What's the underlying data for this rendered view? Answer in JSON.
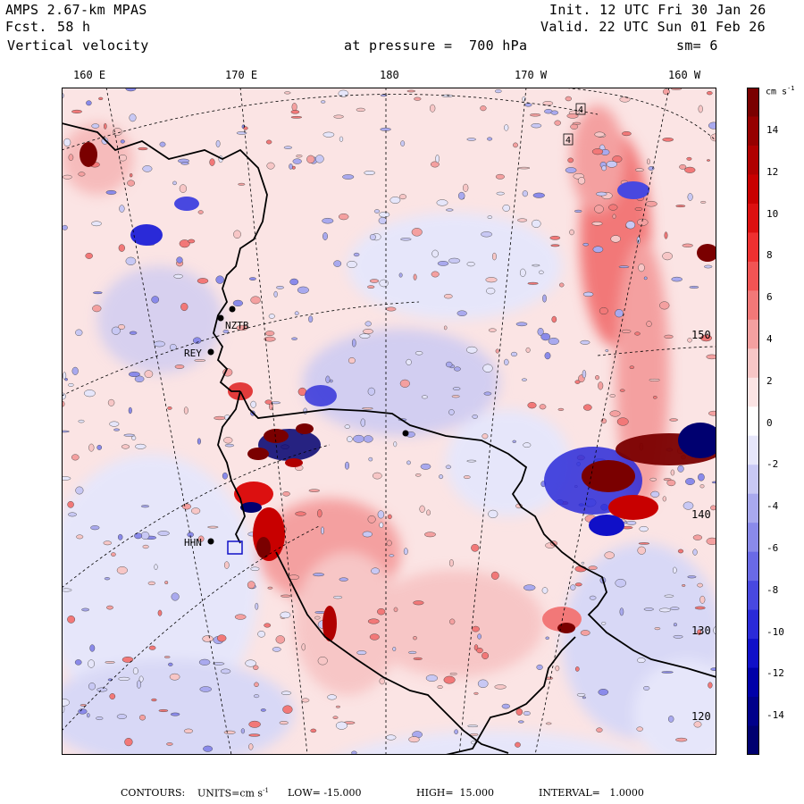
{
  "header": {
    "model": "AMPS 2.67-km MPAS",
    "forecast_label": "Fcst.",
    "forecast_value": "58 h",
    "field": "Vertical velocity",
    "init": "Init. 12 UTC Fri 30 Jan 26",
    "valid": "Valid. 22 UTC Sun 01 Feb 26",
    "level": "at pressure =  700 hPa",
    "smoothing": "sm= 6"
  },
  "lon_labels": [
    "160 E",
    "170 E",
    "180",
    "170 W",
    "160 W"
  ],
  "lat_labels": [
    "150 W",
    "140 W",
    "130 W",
    "120 W"
  ],
  "stations": [
    "NZTB",
    "REY",
    "HHN"
  ],
  "contour_marks": [
    "4",
    "4"
  ],
  "colorbar": {
    "units": "cm s",
    "units_exp": "-1",
    "ticks": [
      "14",
      "12",
      "10",
      "8",
      "6",
      "4",
      "2",
      "0",
      "-2",
      "-4",
      "-6",
      "-8",
      "-10",
      "-12",
      "-14"
    ],
    "colors": [
      "#7a0000",
      "#960000",
      "#b00000",
      "#c80000",
      "#dc1010",
      "#ee3030",
      "#f25454",
      "#f27878",
      "#f4a0a0",
      "#f7c6c6",
      "#fbe4e4",
      "#ffffff",
      "#e6e6fa",
      "#c8c8f4",
      "#a9a9ee",
      "#8a8aea",
      "#6a6ae6",
      "#4848e0",
      "#2a2ad8",
      "#1010c8",
      "#0000a8",
      "#00008a",
      "#000070"
    ]
  },
  "footer": {
    "contours": "CONTOURS:",
    "units_label": "UNITS=cm s",
    "units_exp": "-1",
    "low": "LOW= -15.000",
    "high": "HIGH=  15.000",
    "interval": "INTERVAL=   1.0000"
  },
  "chart_data": {
    "type": "heatmap",
    "title": "Vertical velocity at 700 hPa",
    "units": "cm s-1",
    "contour_low": -15.0,
    "contour_high": 15.0,
    "contour_interval": 1.0
  }
}
